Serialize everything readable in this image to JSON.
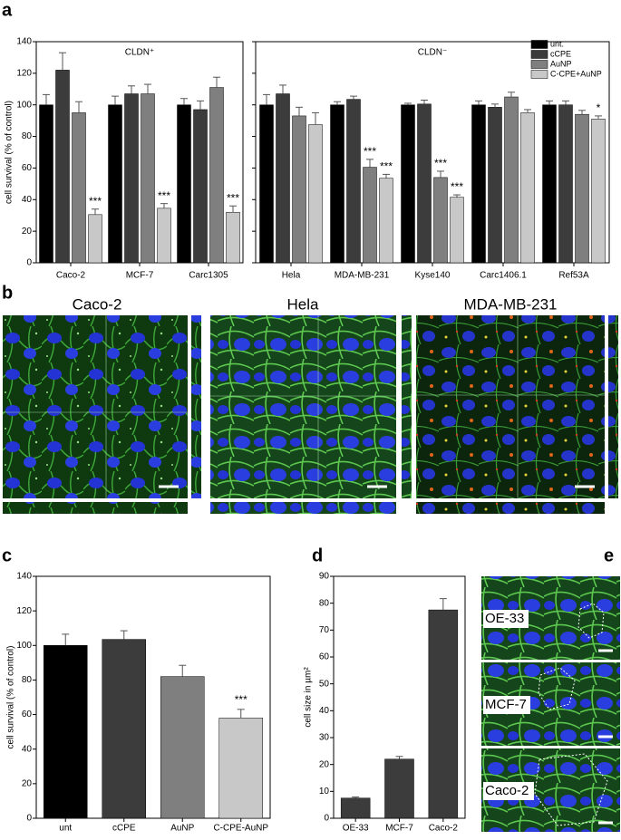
{
  "panel_labels": [
    "a",
    "b",
    "c",
    "d",
    "e"
  ],
  "image_labels_b": [
    "Caco-2",
    "Hela",
    "MDA-MB-231"
  ],
  "image_labels_e": [
    "OE-33",
    "MCF-7",
    "Caco-2"
  ],
  "chart_data": [
    {
      "type": "grouped-bar",
      "ylabel": "cell survival (% of control)",
      "ylim": [
        0,
        140
      ],
      "yticks": [
        0,
        20,
        40,
        60,
        80,
        100,
        120,
        140
      ],
      "legend": "top-right",
      "facets": [
        {
          "title": "CLDN⁺",
          "categories": [
            "Caco-2",
            "MCF-7",
            "Carc1305"
          ]
        },
        {
          "title": "CLDN⁻",
          "categories": [
            "Hela",
            "MDA-MB-231",
            "Kyse140",
            "Carc1406.1",
            "Ref53A"
          ]
        }
      ],
      "series": [
        {
          "name": "unt.",
          "color": "#000000",
          "values": [
            100,
            100,
            100,
            100,
            100,
            100,
            100,
            100
          ],
          "errors": [
            6.5,
            5.5,
            4,
            6.5,
            2,
            1,
            2.5,
            2.5
          ],
          "significance": [
            null,
            null,
            null,
            null,
            null,
            null,
            null,
            null
          ]
        },
        {
          "name": "cCPE",
          "color": "#3c3c3c",
          "values": [
            122,
            107,
            97,
            107,
            103.5,
            100.5,
            98.5,
            100
          ],
          "errors": [
            11,
            5,
            5.5,
            5.5,
            2,
            2.5,
            2,
            2.5
          ],
          "significance": [
            null,
            null,
            null,
            null,
            null,
            null,
            null,
            null
          ]
        },
        {
          "name": "AuNP",
          "color": "#7f7f7f",
          "values": [
            95,
            107,
            111,
            93,
            60.5,
            54,
            105,
            94
          ],
          "errors": [
            7,
            6,
            6.5,
            5.5,
            5,
            4,
            3,
            2.5
          ],
          "significance": [
            null,
            null,
            null,
            null,
            "***",
            "***",
            null,
            null
          ]
        },
        {
          "name": "C-CPE+AuNP",
          "color": "#c8c8c8",
          "values": [
            30.5,
            34.5,
            32,
            87.5,
            53.5,
            41.5,
            95,
            91
          ],
          "errors": [
            3.5,
            3,
            4,
            7.5,
            2.5,
            1.5,
            2,
            2
          ],
          "significance": [
            "***",
            "***",
            "***",
            null,
            "***",
            "***",
            null,
            "*"
          ]
        }
      ]
    },
    {
      "type": "bar",
      "ylabel": "cell survival (% of control)",
      "ylim": [
        0,
        140
      ],
      "yticks": [
        0,
        20,
        40,
        60,
        80,
        100,
        120,
        140
      ],
      "categories": [
        "unt",
        "cCPE",
        "AuNP",
        "C-CPE-AuNP"
      ],
      "values": [
        100,
        103.5,
        82,
        58
      ],
      "errors": [
        6.5,
        5,
        6.5,
        5
      ],
      "colors": [
        "#000000",
        "#3c3c3c",
        "#7f7f7f",
        "#c8c8c8"
      ],
      "significance": [
        null,
        null,
        null,
        "***"
      ]
    },
    {
      "type": "bar",
      "ylabel": "cell size in µm²",
      "ylim": [
        0,
        90
      ],
      "yticks": [
        0,
        10,
        20,
        30,
        40,
        50,
        60,
        70,
        80,
        90
      ],
      "categories": [
        "OE-33",
        "MCF-7",
        "Caco-2"
      ],
      "values": [
        7.5,
        22,
        77.5
      ],
      "errors": [
        0.4,
        1,
        4.2
      ],
      "color": "#3c3c3c"
    }
  ]
}
